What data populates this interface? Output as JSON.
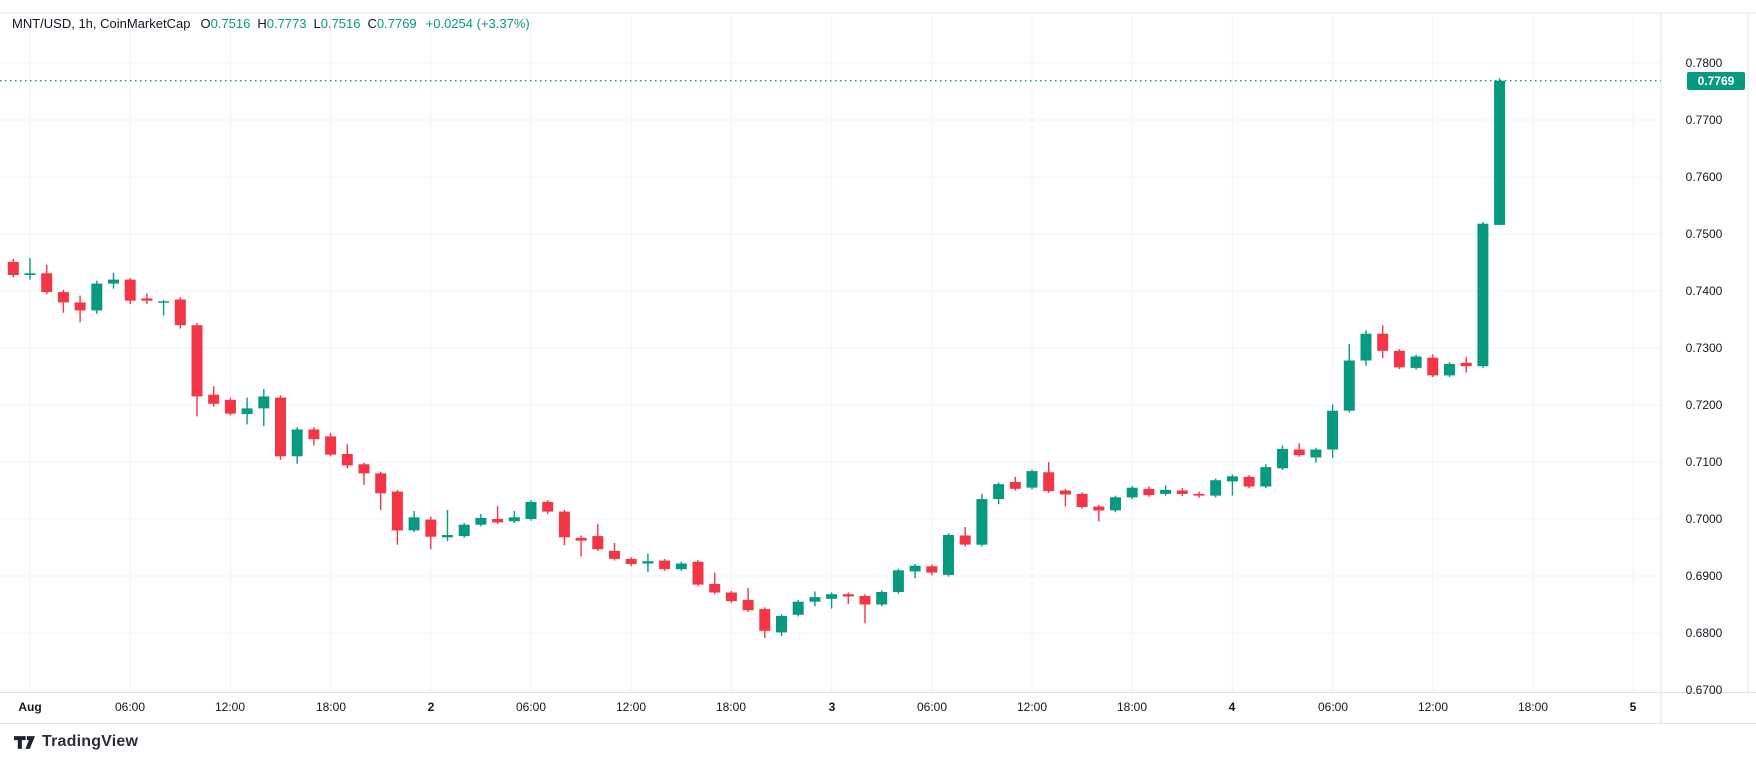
{
  "legend": {
    "symbol": "MNT/USD, 1h, CoinMarketCap",
    "open_label": "O",
    "open_value": "0.7516",
    "high_label": "H",
    "high_value": "0.7773",
    "low_label": "L",
    "low_value": "0.7516",
    "close_label": "C",
    "close_value": "0.7769",
    "change_text": "+0.0254 (+3.37%)"
  },
  "price_axis": {
    "labels": [
      "0.7800",
      "0.7700",
      "0.7600",
      "0.7500",
      "0.7400",
      "0.7300",
      "0.7200",
      "0.7100",
      "0.7000",
      "0.6900",
      "0.6800",
      "0.6700"
    ],
    "current_price_badge": "0.7769"
  },
  "time_axis": {
    "ticks": [
      {
        "text": "Aug",
        "hour": 0,
        "major": true
      },
      {
        "text": "06:00",
        "hour": 6,
        "major": false
      },
      {
        "text": "12:00",
        "hour": 12,
        "major": false
      },
      {
        "text": "18:00",
        "hour": 18,
        "major": false
      },
      {
        "text": "2",
        "hour": 24,
        "major": true
      },
      {
        "text": "06:00",
        "hour": 30,
        "major": false
      },
      {
        "text": "12:00",
        "hour": 36,
        "major": false
      },
      {
        "text": "18:00",
        "hour": 42,
        "major": false
      },
      {
        "text": "3",
        "hour": 48,
        "major": true
      },
      {
        "text": "06:00",
        "hour": 54,
        "major": false
      },
      {
        "text": "12:00",
        "hour": 60,
        "major": false
      },
      {
        "text": "18:00",
        "hour": 66,
        "major": false
      },
      {
        "text": "4",
        "hour": 72,
        "major": true
      },
      {
        "text": "06:00",
        "hour": 78,
        "major": false
      },
      {
        "text": "12:00",
        "hour": 84,
        "major": false
      },
      {
        "text": "18:00",
        "hour": 90,
        "major": false
      },
      {
        "text": "5",
        "hour": 96,
        "major": true
      }
    ]
  },
  "branding": {
    "logo_text": "TradingView"
  },
  "colors": {
    "up": "#089981",
    "down": "#F23645",
    "grid": "#f0f3fa",
    "border": "#e0e3eb",
    "text": "#131722",
    "badge_bg": "#089981",
    "badge_text": "#ffffff"
  },
  "chart_data": {
    "type": "candlestick",
    "title": "MNT/USD, 1h, CoinMarketCap",
    "symbol": "MNT/USD",
    "interval": "1h",
    "source": "CoinMarketCap",
    "last_bar": {
      "open": 0.7516,
      "high": 0.7773,
      "low": 0.7516,
      "close": 0.7769,
      "change": "+0.0254",
      "change_pct": "+3.37%"
    },
    "current_price": 0.7769,
    "y_axis_range": [
      0.665,
      0.788
    ],
    "x_axis": "hourly candles from Jul 31 23:00 through Aug 4, day ticks at Aug 1,2,3,4,5",
    "grid": true,
    "candles_format": [
      "open",
      "high",
      "low",
      "close"
    ],
    "candles": [
      [
        0.7451,
        0.7456,
        0.7424,
        0.7428
      ],
      [
        0.7428,
        0.7458,
        0.742,
        0.7431
      ],
      [
        0.7431,
        0.7446,
        0.7394,
        0.7398
      ],
      [
        0.7398,
        0.7402,
        0.7362,
        0.738
      ],
      [
        0.738,
        0.7392,
        0.7345,
        0.7366
      ],
      [
        0.7366,
        0.7418,
        0.736,
        0.7413
      ],
      [
        0.7413,
        0.7432,
        0.7404,
        0.742
      ],
      [
        0.742,
        0.7423,
        0.7377,
        0.7383
      ],
      [
        0.7387,
        0.7396,
        0.7377,
        0.7383
      ],
      [
        0.738,
        0.7384,
        0.7357,
        0.7382
      ],
      [
        0.7385,
        0.7389,
        0.7334,
        0.734
      ],
      [
        0.734,
        0.7344,
        0.718,
        0.7215
      ],
      [
        0.7218,
        0.7233,
        0.7197,
        0.7202
      ],
      [
        0.7209,
        0.7213,
        0.7182,
        0.7185
      ],
      [
        0.7184,
        0.7213,
        0.7166,
        0.7194
      ],
      [
        0.7194,
        0.7228,
        0.7163,
        0.7215
      ],
      [
        0.7213,
        0.7217,
        0.7104,
        0.711
      ],
      [
        0.711,
        0.7161,
        0.7097,
        0.7157
      ],
      [
        0.7157,
        0.7161,
        0.7129,
        0.714
      ],
      [
        0.7145,
        0.7151,
        0.711,
        0.7113
      ],
      [
        0.7114,
        0.7131,
        0.7089,
        0.7094
      ],
      [
        0.7096,
        0.7099,
        0.706,
        0.708
      ],
      [
        0.708,
        0.7083,
        0.7016,
        0.7045
      ],
      [
        0.7048,
        0.7051,
        0.6955,
        0.698
      ],
      [
        0.698,
        0.7014,
        0.6977,
        0.7003
      ],
      [
        0.6999,
        0.7004,
        0.6947,
        0.6969
      ],
      [
        0.6968,
        0.7016,
        0.6961,
        0.6972
      ],
      [
        0.697,
        0.6993,
        0.6967,
        0.699
      ],
      [
        0.699,
        0.7009,
        0.6987,
        0.7002
      ],
      [
        0.7,
        0.7023,
        0.6991,
        0.6994
      ],
      [
        0.6996,
        0.7014,
        0.6993,
        0.7003
      ],
      [
        0.7,
        0.7033,
        0.6997,
        0.703
      ],
      [
        0.703,
        0.7033,
        0.7009,
        0.7013
      ],
      [
        0.7013,
        0.7016,
        0.6954,
        0.6968
      ],
      [
        0.6967,
        0.6971,
        0.6934,
        0.6962
      ],
      [
        0.697,
        0.6991,
        0.6944,
        0.6947
      ],
      [
        0.6944,
        0.6958,
        0.6927,
        0.693
      ],
      [
        0.693,
        0.6933,
        0.6917,
        0.6921
      ],
      [
        0.6922,
        0.6939,
        0.6907,
        0.6926
      ],
      [
        0.6927,
        0.693,
        0.6909,
        0.6912
      ],
      [
        0.6912,
        0.6925,
        0.6909,
        0.6922
      ],
      [
        0.6925,
        0.6928,
        0.6882,
        0.6885
      ],
      [
        0.6886,
        0.6906,
        0.6868,
        0.6871
      ],
      [
        0.6871,
        0.6874,
        0.6853,
        0.6856
      ],
      [
        0.6858,
        0.6879,
        0.6837,
        0.684
      ],
      [
        0.6842,
        0.6845,
        0.6791,
        0.6804
      ],
      [
        0.6801,
        0.6833,
        0.6795,
        0.683
      ],
      [
        0.6832,
        0.6858,
        0.6829,
        0.6855
      ],
      [
        0.6855,
        0.6873,
        0.6847,
        0.6863
      ],
      [
        0.686,
        0.6871,
        0.6843,
        0.6868
      ],
      [
        0.6868,
        0.6871,
        0.6851,
        0.6864
      ],
      [
        0.6865,
        0.6868,
        0.6817,
        0.685
      ],
      [
        0.685,
        0.6875,
        0.6847,
        0.6872
      ],
      [
        0.6872,
        0.6913,
        0.6869,
        0.691
      ],
      [
        0.6908,
        0.6921,
        0.6896,
        0.6918
      ],
      [
        0.6917,
        0.692,
        0.6901,
        0.6906
      ],
      [
        0.6902,
        0.6975,
        0.6899,
        0.6972
      ],
      [
        0.6971,
        0.6986,
        0.6952,
        0.6955
      ],
      [
        0.6955,
        0.7044,
        0.6952,
        0.7035
      ],
      [
        0.7035,
        0.7064,
        0.7026,
        0.7061
      ],
      [
        0.7065,
        0.7074,
        0.705,
        0.7053
      ],
      [
        0.7055,
        0.7087,
        0.7052,
        0.7084
      ],
      [
        0.7082,
        0.71,
        0.7046,
        0.7049
      ],
      [
        0.705,
        0.7053,
        0.7022,
        0.7043
      ],
      [
        0.7044,
        0.7047,
        0.7018,
        0.7021
      ],
      [
        0.7022,
        0.7025,
        0.6996,
        0.7015
      ],
      [
        0.7015,
        0.7041,
        0.7012,
        0.7038
      ],
      [
        0.7038,
        0.7058,
        0.7035,
        0.7055
      ],
      [
        0.7053,
        0.7057,
        0.7039,
        0.7042
      ],
      [
        0.7044,
        0.7059,
        0.7041,
        0.7051
      ],
      [
        0.705,
        0.7054,
        0.704,
        0.7044
      ],
      [
        0.7044,
        0.7048,
        0.7037,
        0.7041
      ],
      [
        0.7041,
        0.7071,
        0.7038,
        0.7068
      ],
      [
        0.7066,
        0.7078,
        0.7041,
        0.7075
      ],
      [
        0.7074,
        0.7077,
        0.7054,
        0.7057
      ],
      [
        0.7057,
        0.7096,
        0.7054,
        0.7091
      ],
      [
        0.7089,
        0.7129,
        0.7086,
        0.7123
      ],
      [
        0.7122,
        0.7133,
        0.7109,
        0.7112
      ],
      [
        0.7108,
        0.7125,
        0.7099,
        0.7122
      ],
      [
        0.7122,
        0.7201,
        0.7107,
        0.719
      ],
      [
        0.719,
        0.7307,
        0.7187,
        0.7278
      ],
      [
        0.7278,
        0.7331,
        0.7269,
        0.7325
      ],
      [
        0.7325,
        0.734,
        0.7282,
        0.7295
      ],
      [
        0.7295,
        0.7298,
        0.7263,
        0.7266
      ],
      [
        0.7265,
        0.7288,
        0.7262,
        0.7285
      ],
      [
        0.7283,
        0.7289,
        0.7249,
        0.7252
      ],
      [
        0.7252,
        0.7275,
        0.7249,
        0.7272
      ],
      [
        0.7274,
        0.7284,
        0.7257,
        0.7268
      ],
      [
        0.7268,
        0.7521,
        0.7265,
        0.7518
      ],
      [
        0.7516,
        0.7773,
        0.7516,
        0.7769
      ]
    ]
  }
}
